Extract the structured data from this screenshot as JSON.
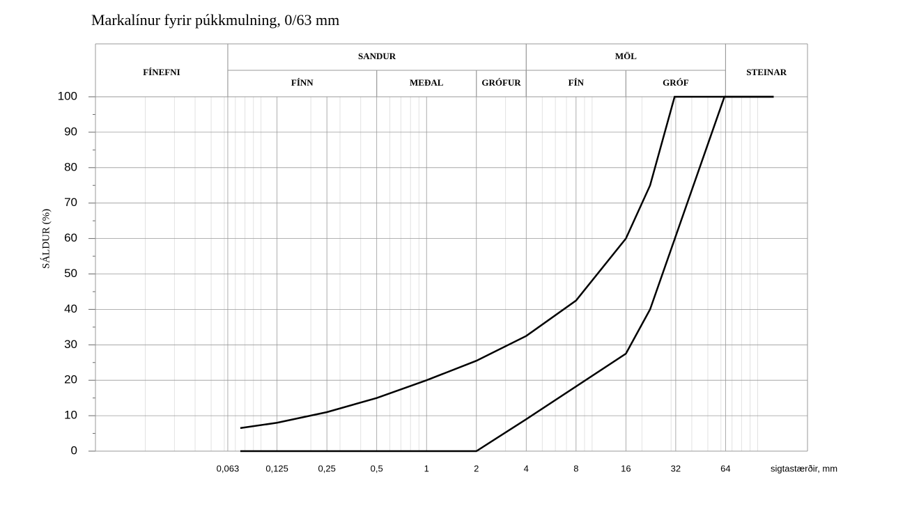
{
  "chart_data": {
    "type": "line",
    "title": "Markalínur fyrir púkkmulning, 0/63 mm",
    "xlabel": "sigtastærðir, mm",
    "ylabel": "SÁLDUR (%)",
    "xscale": "log",
    "xlim": [
      0.01,
      200
    ],
    "ylim": [
      0,
      100
    ],
    "xticks": [
      {
        "value": 0.063,
        "label": "0,063"
      },
      {
        "value": 0.125,
        "label": "0,125"
      },
      {
        "value": 0.25,
        "label": "0,25"
      },
      {
        "value": 0.5,
        "label": "0,5"
      },
      1,
      2,
      4,
      8,
      16,
      32,
      64
    ],
    "yticks": [
      0,
      10,
      20,
      30,
      40,
      50,
      60,
      70,
      80,
      90,
      100
    ],
    "yticks_minor": [
      5,
      15,
      25,
      35,
      45,
      55,
      65,
      75,
      85,
      95
    ],
    "xgrid_minor": [
      0.02,
      0.03,
      0.04,
      0.05,
      0.06,
      0.07,
      0.08,
      0.09,
      0.1,
      0.2,
      0.3,
      0.4,
      0.6,
      0.7,
      0.8,
      0.9,
      3,
      5,
      6,
      7,
      9,
      10,
      20,
      30,
      40,
      50,
      60,
      70,
      80,
      90,
      100
    ],
    "grid": true,
    "zones": [
      {
        "label": "FÍNEFNI",
        "from": 0.01,
        "to": 0.063
      },
      {
        "label": "SANDUR",
        "from": 0.063,
        "to": 4,
        "sub": [
          {
            "label": "FÍNN",
            "from": 0.063,
            "to": 0.5
          },
          {
            "label": "MEÐAL",
            "from": 0.5,
            "to": 2
          },
          {
            "label": "GRÓFUR",
            "from": 2,
            "to": 4
          }
        ]
      },
      {
        "label": "MÖL",
        "from": 4,
        "to": 64,
        "sub": [
          {
            "label": "FÍN",
            "from": 4,
            "to": 16
          },
          {
            "label": "GRÓF",
            "from": 16,
            "to": 64
          }
        ]
      },
      {
        "label": "STEINAR",
        "from": 64,
        "to": 200
      }
    ],
    "series": [
      {
        "color": "#000000",
        "x": [
          0.075,
          0.125,
          0.25,
          0.5,
          1,
          2,
          4,
          8,
          16,
          22.4,
          31.5,
          125
        ],
        "values": [
          6.5,
          8,
          11,
          15,
          20,
          25.5,
          32.5,
          42.5,
          60,
          75,
          100,
          100
        ]
      },
      {
        "color": "#000000",
        "x": [
          0.075,
          2,
          4,
          16,
          22.4,
          63,
          125
        ],
        "values": [
          0,
          0,
          9,
          27.5,
          40,
          100,
          100
        ]
      }
    ]
  }
}
